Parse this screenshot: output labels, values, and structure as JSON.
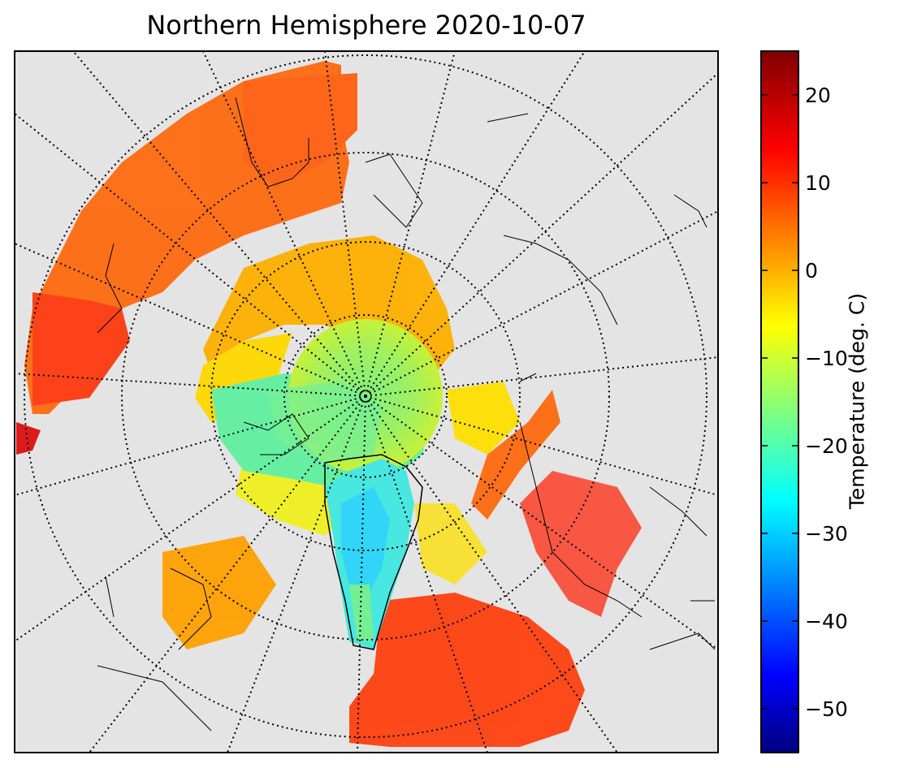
{
  "title": "Northern Hemisphere 2020-10-07",
  "colorbar": {
    "label": "Temperature (deg. C)",
    "min": -55,
    "max": 25,
    "ticks": [
      {
        "value": 20,
        "label": "20"
      },
      {
        "value": 10,
        "label": "10"
      },
      {
        "value": 0,
        "label": "0"
      },
      {
        "value": -10,
        "label": "−10"
      },
      {
        "value": -20,
        "label": "−20"
      },
      {
        "value": -30,
        "label": "−30"
      },
      {
        "value": -40,
        "label": "−40"
      },
      {
        "value": -50,
        "label": "−50"
      }
    ],
    "colormap": "jet"
  },
  "map": {
    "projection": "north-polar-stereographic",
    "land_color": "#e4e4e4",
    "graticule": "dotted"
  }
}
